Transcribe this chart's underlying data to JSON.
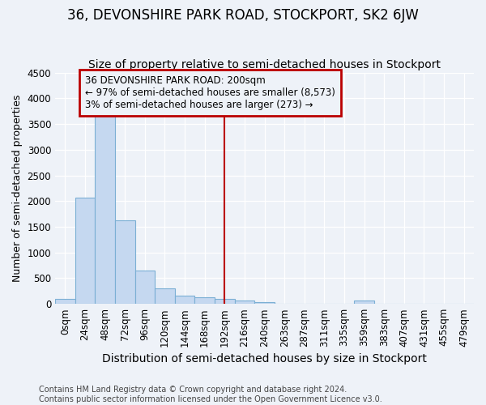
{
  "title": "36, DEVONSHIRE PARK ROAD, STOCKPORT, SK2 6JW",
  "subtitle": "Size of property relative to semi-detached houses in Stockport",
  "xlabel": "Distribution of semi-detached houses by size in Stockport",
  "ylabel": "Number of semi-detached properties",
  "bar_labels": [
    "0sqm",
    "24sqm",
    "48sqm",
    "72sqm",
    "96sqm",
    "120sqm",
    "144sqm",
    "168sqm",
    "192sqm",
    "216sqm",
    "240sqm",
    "263sqm",
    "287sqm",
    "311sqm",
    "335sqm",
    "359sqm",
    "383sqm",
    "407sqm",
    "431sqm",
    "455sqm",
    "479sqm"
  ],
  "bar_heights": [
    90,
    2070,
    3760,
    1620,
    645,
    300,
    165,
    125,
    100,
    65,
    40,
    0,
    0,
    0,
    0,
    60,
    0,
    0,
    0,
    0,
    0
  ],
  "bar_color": "#c5d8f0",
  "bar_edge_color": "#7bafd4",
  "vline_x": 8,
  "vline_color": "#bb0000",
  "ylim": [
    0,
    4500
  ],
  "yticks": [
    0,
    500,
    1000,
    1500,
    2000,
    2500,
    3000,
    3500,
    4000,
    4500
  ],
  "annotation_title": "36 DEVONSHIRE PARK ROAD: 200sqm",
  "annotation_line1": "← 97% of semi-detached houses are smaller (8,573)",
  "annotation_line2": "3% of semi-detached houses are larger (273) →",
  "annotation_box_color": "#bb0000",
  "footer1": "Contains HM Land Registry data © Crown copyright and database right 2024.",
  "footer2": "Contains public sector information licensed under the Open Government Licence v3.0.",
  "bg_color": "#eef2f8",
  "grid_color": "#ffffff",
  "title_fontsize": 12,
  "subtitle_fontsize": 10,
  "xlabel_fontsize": 10,
  "ylabel_fontsize": 9,
  "tick_fontsize": 8.5,
  "annot_fontsize": 8.5,
  "footer_fontsize": 7
}
